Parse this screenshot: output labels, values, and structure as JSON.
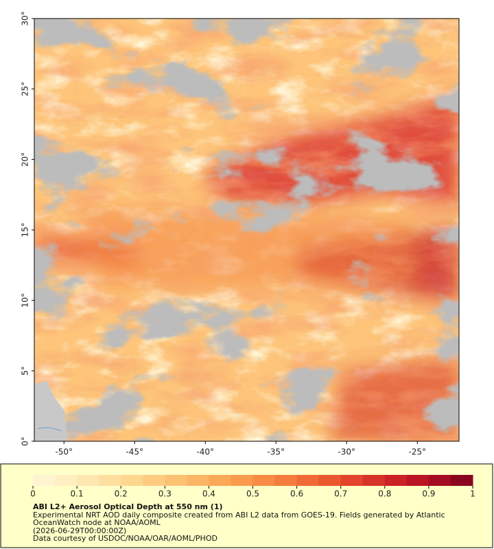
{
  "map": {
    "xlim": [
      -52.1,
      -22.05
    ],
    "ylim": [
      0,
      30
    ],
    "xticks": [
      {
        "value": -50,
        "label": "-50°"
      },
      {
        "value": -45,
        "label": "-45°"
      },
      {
        "value": -40,
        "label": "-40°"
      },
      {
        "value": -35,
        "label": "-35°"
      },
      {
        "value": -30,
        "label": "-30°"
      },
      {
        "value": -25,
        "label": "-25°"
      }
    ],
    "yticks": [
      {
        "value": 0,
        "label": "0°"
      },
      {
        "value": 5,
        "label": "5°"
      },
      {
        "value": 10,
        "label": "10°"
      },
      {
        "value": 15,
        "label": "15°"
      },
      {
        "value": 20,
        "label": "20°"
      },
      {
        "value": 25,
        "label": "25°"
      },
      {
        "value": 30,
        "label": "30°"
      }
    ]
  },
  "colorbar": {
    "lim": [
      0,
      1
    ],
    "ticks": [
      0,
      0.1,
      0.2,
      0.3,
      0.4,
      0.5,
      0.6,
      0.7,
      0.8,
      0.9,
      1
    ],
    "colors": [
      "#fff4d2",
      "#ffefc2",
      "#fee7b0",
      "#fedfa0",
      "#fdd690",
      "#fdcc80",
      "#fcc172",
      "#fcb565",
      "#fba858",
      "#fa9b4d",
      "#f88c44",
      "#f57c3c",
      "#f06a35",
      "#ea5830",
      "#e2452b",
      "#d83328",
      "#cb2226",
      "#b91524",
      "#a30c22",
      "#8a051f"
    ]
  },
  "caption": {
    "title": "ABI L2+ Aerosol Optical Depth at 550 nm (1)",
    "lines": [
      "Experimental NRT AOD daily composite created from ABI L2 data from GOES-19. Fields generated by Atlantic OceanWatch node at NOAA/AOML",
      "(2026-06-29T00:00:00Z)",
      "Data courtesy of USDOC/NOAA/OAR/AOML/PHOD"
    ]
  }
}
